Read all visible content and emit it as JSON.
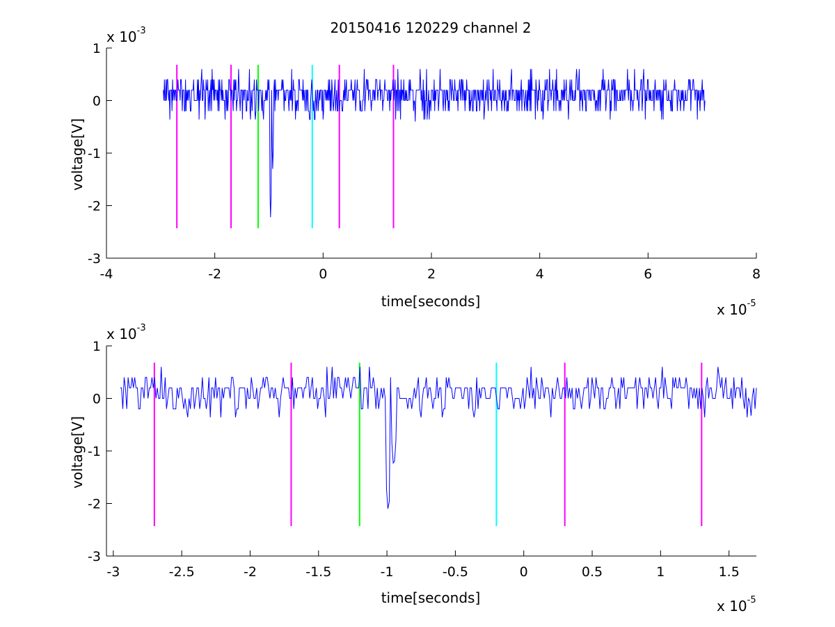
{
  "figure": {
    "title": "20150416 120229 channel 2"
  },
  "colors": {
    "signal": "#0000ff",
    "magenta": "#ff00ff",
    "green": "#00ff00",
    "cyan": "#00ffff",
    "axis": "#000000",
    "background": "#ffffff"
  },
  "chart_data": [
    {
      "type": "line",
      "title": "20150416 120229 channel 2",
      "xlabel": "time[seconds]",
      "ylabel": "voltage[V]",
      "x_multiplier_label": {
        "base": "x 10",
        "exp": "-5"
      },
      "y_multiplier_label": {
        "base": "x 10",
        "exp": "-3"
      },
      "xlim": [
        -4,
        8
      ],
      "ylim": [
        -3,
        1
      ],
      "x_ticks": [
        -4,
        -2,
        0,
        2,
        4,
        6,
        8
      ],
      "x_tick_labels": [
        "-4",
        "-2",
        "0",
        "2",
        "4",
        "6",
        "8"
      ],
      "y_ticks": [
        1,
        0,
        -1,
        -2,
        -3
      ],
      "y_tick_labels": [
        "1",
        "0",
        "-1",
        "-2",
        "-3"
      ],
      "grid": false,
      "signal": {
        "x_start": -2.95,
        "x_end": 7.05,
        "spikes": [
          {
            "x": -0.97,
            "y": -2.22
          },
          {
            "x": -0.93,
            "y": -1.3
          },
          {
            "x": 1.7,
            "y": -0.4
          }
        ]
      },
      "markers": [
        {
          "x": -2.7,
          "y_top": 0.68,
          "y_bottom": -2.43,
          "color": "magenta"
        },
        {
          "x": -1.7,
          "y_top": 0.68,
          "y_bottom": -2.43,
          "color": "magenta"
        },
        {
          "x": -1.2,
          "y_top": 0.68,
          "y_bottom": -2.43,
          "color": "green"
        },
        {
          "x": -0.2,
          "y_top": 0.68,
          "y_bottom": -2.43,
          "color": "cyan"
        },
        {
          "x": 0.3,
          "y_top": 0.68,
          "y_bottom": -2.43,
          "color": "magenta"
        },
        {
          "x": 1.3,
          "y_top": 0.68,
          "y_bottom": -2.43,
          "color": "magenta"
        }
      ]
    },
    {
      "type": "line",
      "title": "",
      "xlabel": "time[seconds]",
      "ylabel": "voltage[V]",
      "x_multiplier_label": {
        "base": "x 10",
        "exp": "-5"
      },
      "y_multiplier_label": {
        "base": "x 10",
        "exp": "-3"
      },
      "xlim": [
        -3.05,
        1.7
      ],
      "ylim": [
        -3,
        1
      ],
      "x_ticks": [
        -3,
        -2.5,
        -2,
        -1.5,
        -1,
        -0.5,
        0,
        0.5,
        1,
        1.5
      ],
      "x_tick_labels": [
        "-3",
        "-2.5",
        "-2",
        "-1.5",
        "-1",
        "-0.5",
        "0",
        "0.5",
        "1",
        "1.5"
      ],
      "y_ticks": [
        1,
        0,
        -1,
        -2,
        -3
      ],
      "y_tick_labels": [
        "1",
        "0",
        "-1",
        "-2",
        "-3"
      ],
      "grid": false,
      "signal": {
        "x_start": -2.95,
        "x_end": 1.7,
        "spikes": [
          {
            "x": -0.99,
            "y": -2.22
          },
          {
            "x": -0.95,
            "y": -1.4
          },
          {
            "x": 1.66,
            "y": -0.38
          }
        ]
      },
      "markers": [
        {
          "x": -2.7,
          "y_top": 0.68,
          "y_bottom": -2.43,
          "color": "magenta"
        },
        {
          "x": -1.7,
          "y_top": 0.68,
          "y_bottom": -2.43,
          "color": "magenta"
        },
        {
          "x": -1.2,
          "y_top": 0.68,
          "y_bottom": -2.43,
          "color": "green"
        },
        {
          "x": -0.2,
          "y_top": 0.68,
          "y_bottom": -2.43,
          "color": "cyan"
        },
        {
          "x": 0.3,
          "y_top": 0.68,
          "y_bottom": -2.43,
          "color": "magenta"
        },
        {
          "x": 1.3,
          "y_top": 0.68,
          "y_bottom": -2.43,
          "color": "magenta"
        }
      ]
    }
  ]
}
